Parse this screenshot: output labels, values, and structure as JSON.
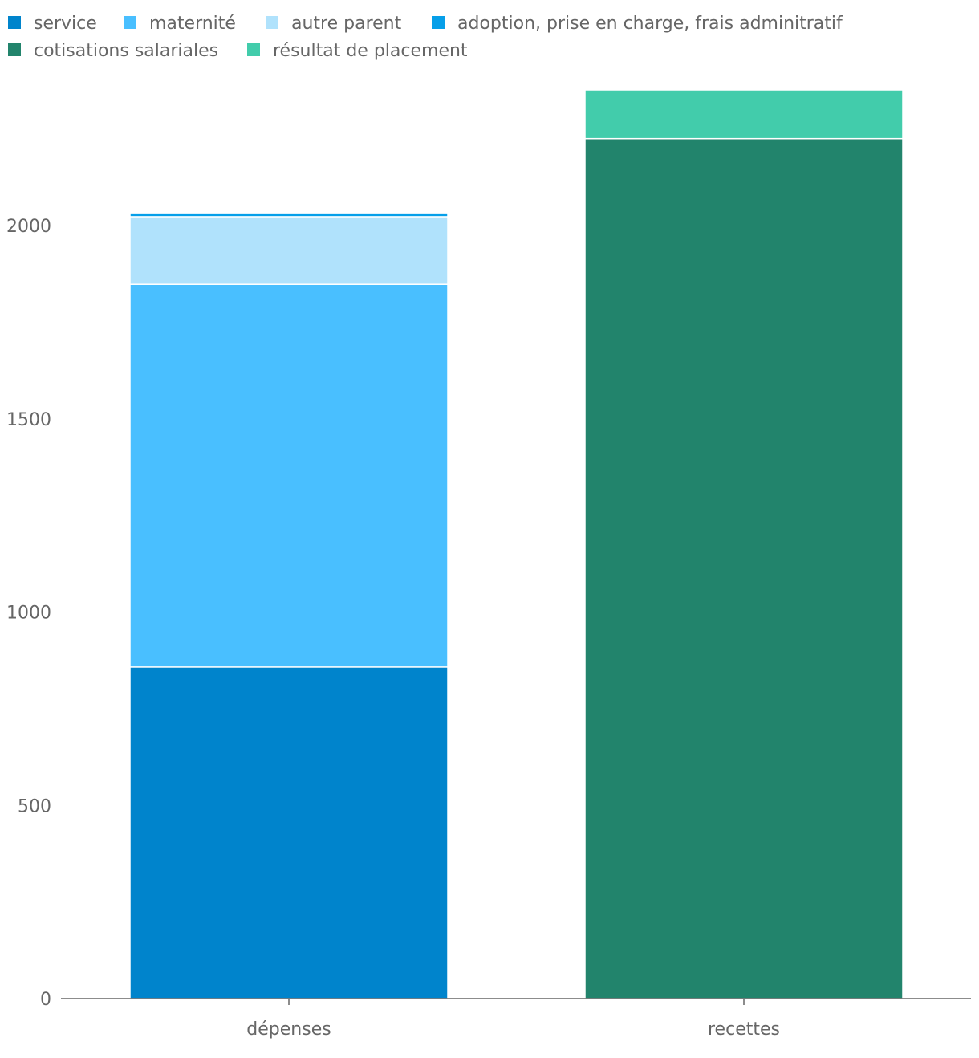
{
  "chart_data": {
    "type": "bar",
    "stacked": true,
    "categories": [
      "dépenses",
      "recettes"
    ],
    "series": [
      {
        "name": "service",
        "color": "#0084cc",
        "values": [
          858,
          0
        ]
      },
      {
        "name": "maternité",
        "color": "#49bfff",
        "values": [
          990,
          0
        ]
      },
      {
        "name": "autre parent",
        "color": "#b0e2fc",
        "values": [
          175,
          0
        ]
      },
      {
        "name": "adoption, prise en charge, frais adminitratif",
        "color": "#069fe9",
        "values": [
          10,
          0
        ]
      },
      {
        "name": "cotisations salariales",
        "color": "#22846c",
        "values": [
          0,
          2225
        ]
      },
      {
        "name": "résultat de placement",
        "color": "#42ccab",
        "values": [
          0,
          126
        ]
      }
    ],
    "yticks": [
      0,
      500,
      1000,
      1500,
      2000
    ],
    "ylim": [
      0,
      2351
    ],
    "grid": false,
    "legend": "top-left"
  }
}
